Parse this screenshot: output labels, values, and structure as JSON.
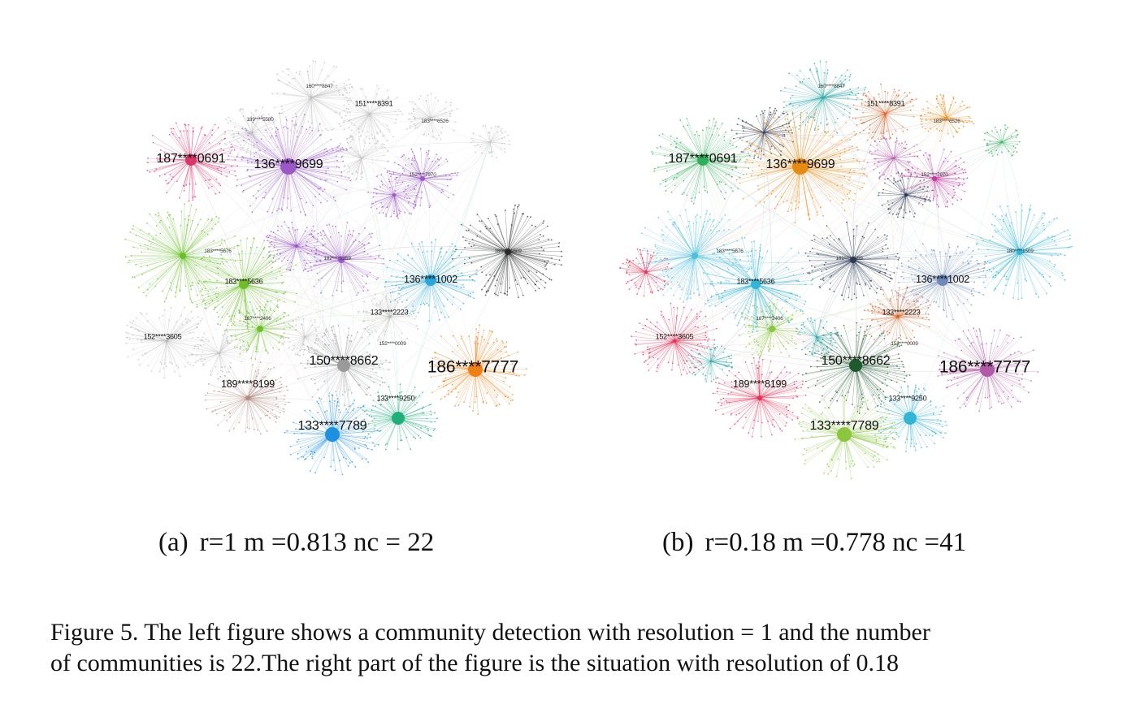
{
  "panels": [
    {
      "id": "a",
      "subcaption": {
        "tag": "(a)",
        "text": "r=1 m =0.813 nc = 22"
      },
      "labels": [
        "151****8391",
        "183****6526",
        "187****0691",
        "136****9699",
        "152****7970",
        "183****5676",
        "183****5636",
        "182****1359",
        "180****1509",
        "136****1002",
        "187****2406",
        "133****2223",
        "152****3605",
        "152****0009",
        "150****8662",
        "186****7777",
        "189****8199",
        "133****9250",
        "133****7789"
      ],
      "colors": {
        "pink": "#d8356a",
        "purple": "#9b59c6",
        "green": "#6cbf2a",
        "gray": "#9a9a9a",
        "black": "#2a2a2a",
        "sky": "#2aa7d8",
        "orange": "#ef7f12",
        "teal": "#1faf7a",
        "brown": "#b38d85",
        "blue": "#1e90e0",
        "lightgray": "#bdbdbd"
      }
    },
    {
      "id": "b",
      "subcaption": {
        "tag": "(b)",
        "text": "r=0.18 m =0.778 nc =41"
      },
      "labels": [
        "151****8391",
        "183****6526",
        "187****0691",
        "136****9699",
        "152****7970",
        "183****5676",
        "183****5636",
        "182****1359",
        "180****1509",
        "136****1002",
        "187****2406",
        "133****2223",
        "152****3605",
        "152****0009",
        "150****8662",
        "186****7777",
        "189****8199",
        "133****9250",
        "133****7789"
      ],
      "colors": {
        "orange": "#e58a12",
        "green": "#2fae5a",
        "teal": "#2aa7a7",
        "navy": "#2b3a55",
        "rust": "#d4682f",
        "magenta": "#c03a9f",
        "skyblue": "#4fc0dc",
        "red": "#e2345a",
        "lime": "#8cc63f",
        "darkgreen": "#1f5a2e",
        "steel": "#6f8ab8",
        "plum": "#b05aa8",
        "cyan": "#33b5d6"
      }
    }
  ],
  "caption": {
    "line1": "Figure 5. The left figure shows a community detection with resolution = 1 and the number",
    "line2": "of communities is 22.The right part of the figure is the situation with resolution of 0.18"
  }
}
